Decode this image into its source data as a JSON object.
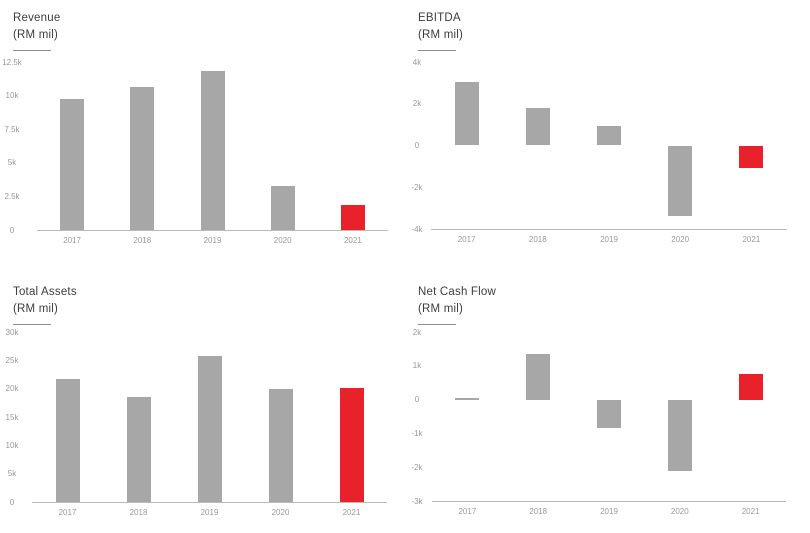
{
  "colors": {
    "bar": "#a7a7a7",
    "highlight_bar": "#e8212b",
    "axis_line": "#b9b9b9",
    "tick_text": "#999999",
    "title_text": "#3d3d3d"
  },
  "chart_data": [
    {
      "type": "bar",
      "title": "Revenue",
      "unit_label": "(RM mil)",
      "categories": [
        "2017",
        "2018",
        "2019",
        "2020",
        "2021"
      ],
      "values": [
        9710,
        10640,
        11860,
        3270,
        1840
      ],
      "highlight_category": "2021",
      "ylim": [
        0,
        12500
      ],
      "yticks": [
        {
          "value": 12500,
          "label": "12.5k"
        },
        {
          "value": 10000,
          "label": "10k"
        },
        {
          "value": 7500,
          "label": "7.5k"
        },
        {
          "value": 5000,
          "label": "5k"
        },
        {
          "value": 2500,
          "label": "2.5k"
        },
        {
          "value": 0,
          "label": "0"
        }
      ],
      "xlabel": "",
      "ylabel": "RM mil",
      "grid": false,
      "legend_position": "none"
    },
    {
      "type": "bar",
      "title": "EBITDA",
      "unit_label": "(RM mil)",
      "categories": [
        "2017",
        "2018",
        "2019",
        "2020",
        "2021"
      ],
      "values": [
        3050,
        1820,
        950,
        -3400,
        -1100
      ],
      "highlight_category": "2021",
      "ylim": [
        -4000,
        4000
      ],
      "yticks": [
        {
          "value": 4000,
          "label": "4k"
        },
        {
          "value": 2000,
          "label": "2k"
        },
        {
          "value": 0,
          "label": "0"
        },
        {
          "value": -2000,
          "label": "-2k"
        },
        {
          "value": -4000,
          "label": "-4k"
        }
      ],
      "xlabel": "",
      "ylabel": "RM mil",
      "grid": false,
      "legend_position": "none"
    },
    {
      "type": "bar",
      "title": "Total Assets",
      "unit_label": "(RM mil)",
      "categories": [
        "2017",
        "2018",
        "2019",
        "2020",
        "2021"
      ],
      "values": [
        21700,
        18600,
        25700,
        19900,
        20100
      ],
      "highlight_category": "2021",
      "ylim": [
        0,
        30000
      ],
      "yticks": [
        {
          "value": 30000,
          "label": "30k"
        },
        {
          "value": 25000,
          "label": "25k"
        },
        {
          "value": 20000,
          "label": "20k"
        },
        {
          "value": 15000,
          "label": "15k"
        },
        {
          "value": 10000,
          "label": "10k"
        },
        {
          "value": 5000,
          "label": "5k"
        },
        {
          "value": 0,
          "label": "0"
        }
      ],
      "xlabel": "",
      "ylabel": "RM mil",
      "grid": false,
      "legend_position": "none"
    },
    {
      "type": "bar",
      "title": "Net Cash Flow",
      "unit_label": "(RM mil)",
      "categories": [
        "2017",
        "2018",
        "2019",
        "2020",
        "2021"
      ],
      "values": [
        60,
        1350,
        -830,
        -2100,
        770
      ],
      "highlight_category": "2021",
      "ylim": [
        -3000,
        2000
      ],
      "yticks": [
        {
          "value": 2000,
          "label": "2k"
        },
        {
          "value": 1000,
          "label": "1k"
        },
        {
          "value": 0,
          "label": "0"
        },
        {
          "value": -1000,
          "label": "-1k"
        },
        {
          "value": -2000,
          "label": "-2k"
        },
        {
          "value": -3000,
          "label": "-3k"
        }
      ],
      "xlabel": "",
      "ylabel": "RM mil",
      "grid": false,
      "legend_position": "none"
    }
  ]
}
